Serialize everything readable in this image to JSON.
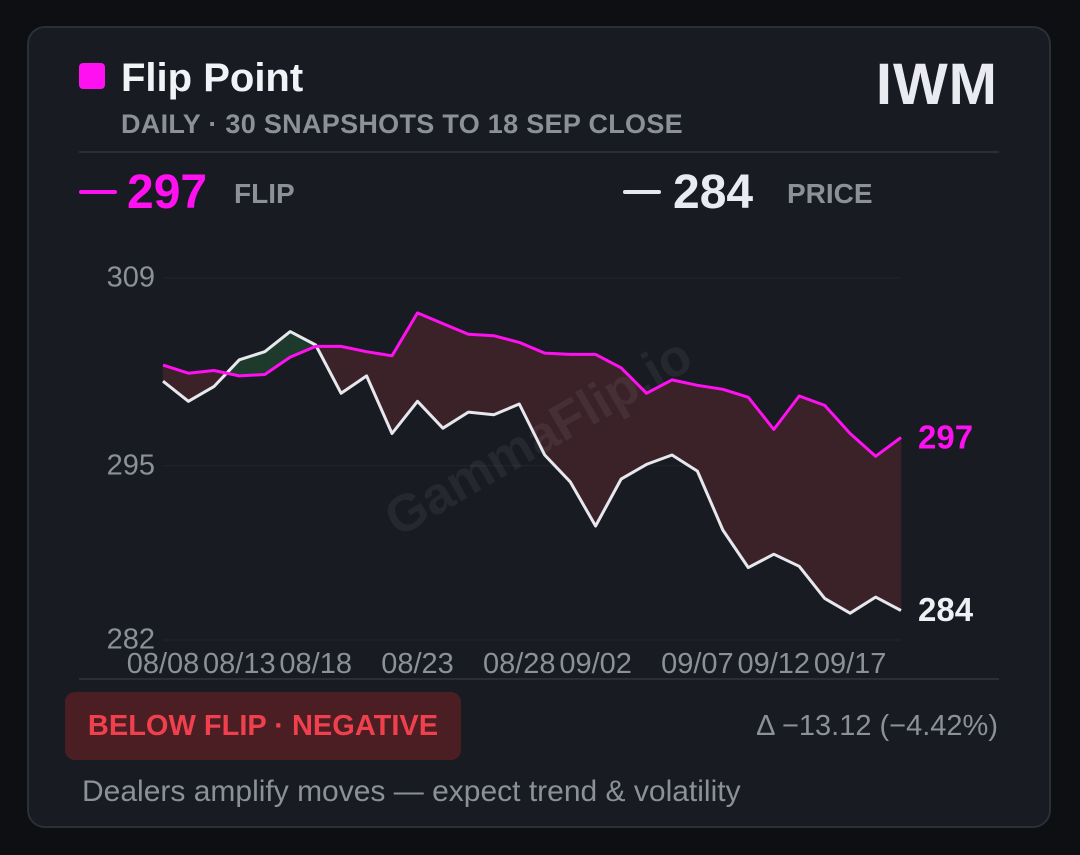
{
  "header": {
    "title": "Flip Point",
    "subtitle": "DAILY · 30 SNAPSHOTS TO 18 SEP CLOSE",
    "ticker": "IWM"
  },
  "stats": {
    "flip": {
      "value": "297",
      "label": "FLIP"
    },
    "price": {
      "value": "284",
      "label": "PRICE"
    }
  },
  "status": {
    "badge": "BELOW FLIP · NEGATIVE",
    "delta": "Δ −13.12 (−4.42%)",
    "note": "Dealers amplify moves — expect trend & volatility"
  },
  "colors": {
    "flip": "#ff10f0",
    "price": "#e6e8ee",
    "negative_fill": "#3b2229",
    "positive_fill": "#1d3a2c",
    "badge_bg": "#4b1e24",
    "badge_text": "#f0404d"
  },
  "chart_data": {
    "type": "line",
    "watermark": "GammaFlip.io",
    "ylim": [
      282,
      309
    ],
    "yticks": [
      {
        "value": 309,
        "label": "309"
      },
      {
        "value": 295,
        "label": "295"
      },
      {
        "value": 282,
        "label": "282"
      }
    ],
    "x_labels": [
      {
        "index": 0,
        "label": "08/08"
      },
      {
        "index": 3,
        "label": "08/13"
      },
      {
        "index": 6,
        "label": "08/18"
      },
      {
        "index": 10,
        "label": "08/23"
      },
      {
        "index": 14,
        "label": "08/28"
      },
      {
        "index": 17,
        "label": "09/02"
      },
      {
        "index": 21,
        "label": "09/07"
      },
      {
        "index": 24,
        "label": "09/12"
      },
      {
        "index": 27,
        "label": "09/17"
      }
    ],
    "series": [
      {
        "name": "FLIP",
        "values": [
          302.5,
          301.9,
          302.1,
          301.7,
          301.8,
          303.1,
          303.9,
          303.9,
          303.5,
          303.2,
          306.4,
          305.6,
          304.8,
          304.7,
          304.2,
          303.4,
          303.3,
          303.3,
          302.3,
          300.4,
          301.4,
          301.0,
          300.7,
          300.1,
          297.7,
          300.2,
          299.5,
          297.4,
          295.7,
          297.1
        ],
        "end_label": "297"
      },
      {
        "name": "PRICE",
        "values": [
          301.3,
          299.8,
          300.9,
          302.9,
          303.5,
          305.0,
          304.0,
          300.4,
          301.7,
          297.4,
          299.8,
          297.8,
          299.0,
          298.8,
          299.6,
          295.8,
          293.8,
          290.5,
          294.0,
          295.1,
          295.8,
          294.6,
          290.2,
          287.4,
          288.4,
          287.5,
          285.1,
          284.0,
          285.2,
          284.2
        ],
        "end_label": "284"
      }
    ]
  }
}
